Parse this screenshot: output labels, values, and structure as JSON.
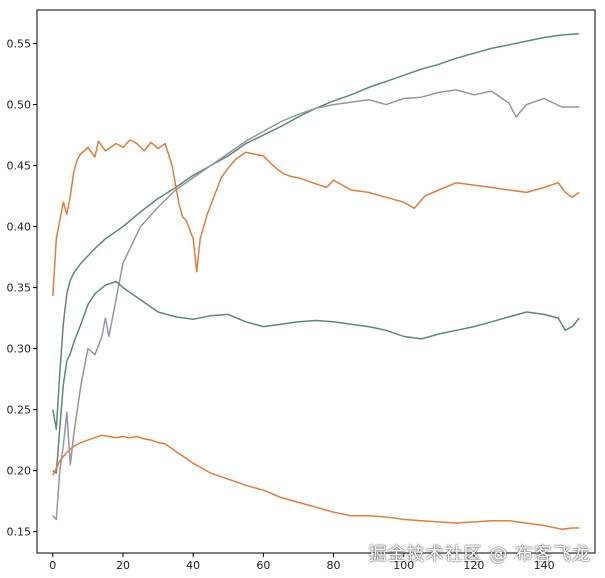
{
  "chart_data": {
    "type": "line",
    "title": "",
    "xlabel": "",
    "ylabel": "",
    "xlim": [
      -4.5,
      154.5
    ],
    "ylim": [
      0.1325,
      0.5775
    ],
    "x_ticks": [
      0,
      20,
      40,
      60,
      80,
      100,
      120,
      140
    ],
    "y_ticks": [
      0.15,
      0.2,
      0.25,
      0.3,
      0.35,
      0.4,
      0.45,
      0.5,
      0.55
    ],
    "grid": false,
    "legend": "none",
    "series": [
      {
        "color": "#5b8a76",
        "x": [
          0,
          1,
          2,
          3,
          4,
          5,
          6,
          8,
          10,
          12,
          15,
          18,
          20,
          25,
          30,
          35,
          40,
          45,
          50,
          55,
          60,
          65,
          70,
          75,
          80,
          85,
          90,
          95,
          100,
          105,
          110,
          115,
          120,
          125,
          130,
          135,
          140,
          145,
          150
        ],
        "values": [
          0.25,
          0.234,
          0.28,
          0.32,
          0.345,
          0.356,
          0.362,
          0.37,
          0.376,
          0.382,
          0.39,
          0.396,
          0.4,
          0.412,
          0.423,
          0.432,
          0.442,
          0.45,
          0.458,
          0.468,
          0.475,
          0.482,
          0.49,
          0.497,
          0.503,
          0.508,
          0.514,
          0.519,
          0.524,
          0.529,
          0.533,
          0.538,
          0.542,
          0.546,
          0.549,
          0.552,
          0.555,
          0.557,
          0.558
        ]
      },
      {
        "color": "#9595a6",
        "x": [
          0,
          1,
          2,
          3,
          4,
          5,
          6,
          8,
          10,
          12,
          14,
          15,
          16,
          18,
          20,
          25,
          30,
          35,
          40,
          45,
          50,
          55,
          60,
          65,
          70,
          75,
          80,
          85,
          90,
          95,
          100,
          105,
          110,
          115,
          120,
          125,
          130,
          132,
          135,
          140,
          145,
          150
        ],
        "values": [
          0.163,
          0.16,
          0.2,
          0.22,
          0.248,
          0.205,
          0.23,
          0.27,
          0.3,
          0.295,
          0.31,
          0.325,
          0.31,
          0.34,
          0.37,
          0.4,
          0.416,
          0.43,
          0.44,
          0.45,
          0.46,
          0.47,
          0.478,
          0.486,
          0.492,
          0.497,
          0.5,
          0.502,
          0.504,
          0.5,
          0.505,
          0.506,
          0.51,
          0.512,
          0.508,
          0.511,
          0.501,
          0.49,
          0.5,
          0.505,
          0.498,
          0.498
        ]
      },
      {
        "color": "#e07d3e",
        "x": [
          0,
          1,
          2,
          3,
          4,
          5,
          6,
          7,
          8,
          9,
          10,
          12,
          13,
          15,
          18,
          20,
          22,
          24,
          26,
          28,
          30,
          32,
          34,
          36,
          37,
          38,
          40,
          41,
          42,
          44,
          46,
          48,
          50,
          52,
          55,
          58,
          60,
          62,
          64,
          66,
          68,
          70,
          74,
          78,
          80,
          85,
          90,
          95,
          100,
          103,
          106,
          110,
          115,
          120,
          125,
          130,
          135,
          140,
          144,
          146,
          148,
          150
        ],
        "values": [
          0.343,
          0.39,
          0.405,
          0.42,
          0.41,
          0.425,
          0.445,
          0.455,
          0.46,
          0.462,
          0.465,
          0.457,
          0.47,
          0.462,
          0.468,
          0.465,
          0.471,
          0.468,
          0.462,
          0.469,
          0.464,
          0.468,
          0.45,
          0.418,
          0.408,
          0.405,
          0.39,
          0.363,
          0.39,
          0.41,
          0.425,
          0.44,
          0.448,
          0.455,
          0.461,
          0.459,
          0.458,
          0.452,
          0.447,
          0.443,
          0.441,
          0.44,
          0.436,
          0.432,
          0.438,
          0.43,
          0.428,
          0.424,
          0.42,
          0.415,
          0.425,
          0.43,
          0.436,
          0.434,
          0.432,
          0.43,
          0.428,
          0.432,
          0.436,
          0.428,
          0.424,
          0.428
        ]
      },
      {
        "color": "#5b8a76",
        "x": [
          0,
          1,
          2,
          3,
          4,
          5,
          6,
          8,
          10,
          12,
          15,
          18,
          20,
          25,
          30,
          35,
          40,
          45,
          50,
          55,
          60,
          65,
          70,
          75,
          80,
          85,
          90,
          95,
          100,
          105,
          110,
          115,
          120,
          125,
          130,
          135,
          140,
          144,
          146,
          148,
          150
        ],
        "values": [
          0.2,
          0.198,
          0.235,
          0.27,
          0.29,
          0.296,
          0.305,
          0.32,
          0.336,
          0.345,
          0.352,
          0.355,
          0.35,
          0.34,
          0.33,
          0.326,
          0.324,
          0.327,
          0.328,
          0.322,
          0.318,
          0.32,
          0.322,
          0.323,
          0.322,
          0.32,
          0.318,
          0.315,
          0.31,
          0.308,
          0.312,
          0.315,
          0.318,
          0.322,
          0.326,
          0.33,
          0.328,
          0.325,
          0.315,
          0.318,
          0.325
        ]
      },
      {
        "color": "#e07d3e",
        "x": [
          0,
          2,
          4,
          6,
          8,
          10,
          12,
          14,
          16,
          18,
          20,
          22,
          24,
          26,
          28,
          30,
          32,
          34,
          36,
          38,
          40,
          45,
          50,
          55,
          60,
          65,
          70,
          75,
          80,
          85,
          90,
          95,
          100,
          105,
          110,
          115,
          120,
          125,
          130,
          135,
          140,
          145,
          148,
          150
        ],
        "values": [
          0.196,
          0.208,
          0.215,
          0.22,
          0.223,
          0.225,
          0.227,
          0.229,
          0.228,
          0.227,
          0.228,
          0.227,
          0.228,
          0.226,
          0.225,
          0.223,
          0.222,
          0.218,
          0.214,
          0.21,
          0.206,
          0.198,
          0.193,
          0.188,
          0.184,
          0.178,
          0.174,
          0.17,
          0.166,
          0.163,
          0.163,
          0.162,
          0.16,
          0.159,
          0.158,
          0.157,
          0.158,
          0.159,
          0.159,
          0.157,
          0.155,
          0.152,
          0.153,
          0.153
        ]
      }
    ]
  },
  "watermark": {
    "text": "掘金技术社区 @ 布客飞龙"
  }
}
